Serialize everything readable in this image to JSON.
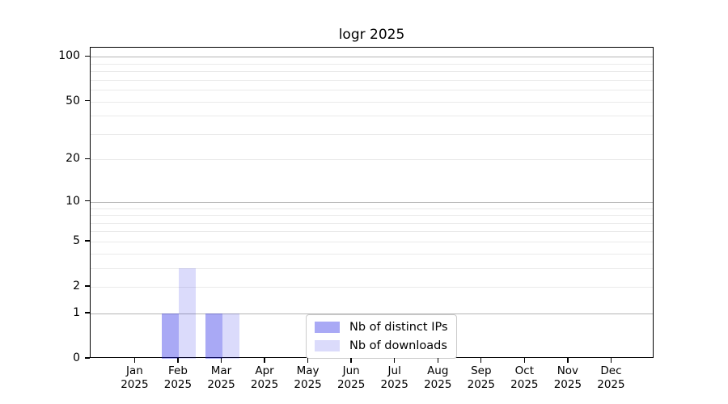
{
  "chart_data": {
    "type": "bar",
    "title": "logr 2025",
    "categories": [
      "Jan 2025",
      "Feb 2025",
      "Mar 2025",
      "Apr 2025",
      "May 2025",
      "Jun 2025",
      "Jul 2025",
      "Aug 2025",
      "Sep 2025",
      "Oct 2025",
      "Nov 2025",
      "Dec 2025"
    ],
    "series": [
      {
        "name": "Nb of distinct IPs",
        "color": "#1e1ee661",
        "values": [
          0,
          1,
          1,
          0,
          0,
          0,
          0,
          0,
          0,
          0,
          0,
          0
        ]
      },
      {
        "name": "Nb of downloads",
        "color": "#1e1ee629",
        "values": [
          0,
          3,
          1,
          0,
          0,
          0,
          0,
          0,
          0,
          0,
          0,
          0
        ]
      }
    ],
    "xlabel": "",
    "ylabel": "",
    "yscale": "log1p",
    "ylim": [
      0,
      115
    ],
    "y_ticks": [
      0,
      1,
      2,
      5,
      10,
      20,
      50,
      100
    ],
    "grid_major": [
      1,
      10,
      100
    ],
    "grid_minor": [
      2,
      3,
      4,
      5,
      6,
      7,
      8,
      9,
      20,
      30,
      40,
      50,
      60,
      70,
      80,
      90
    ],
    "grid": "horizontal",
    "legend_position": "lower center inside"
  },
  "colors": {
    "bar_distinct_ips_on_white": "#aaaaf7",
    "bar_downloads_on_white": "#dbdbf8",
    "grid_major": "#b4b4b4",
    "grid_minor": "#eaeaea",
    "axis": "#000000",
    "legend_border": "#cbcbcb"
  }
}
